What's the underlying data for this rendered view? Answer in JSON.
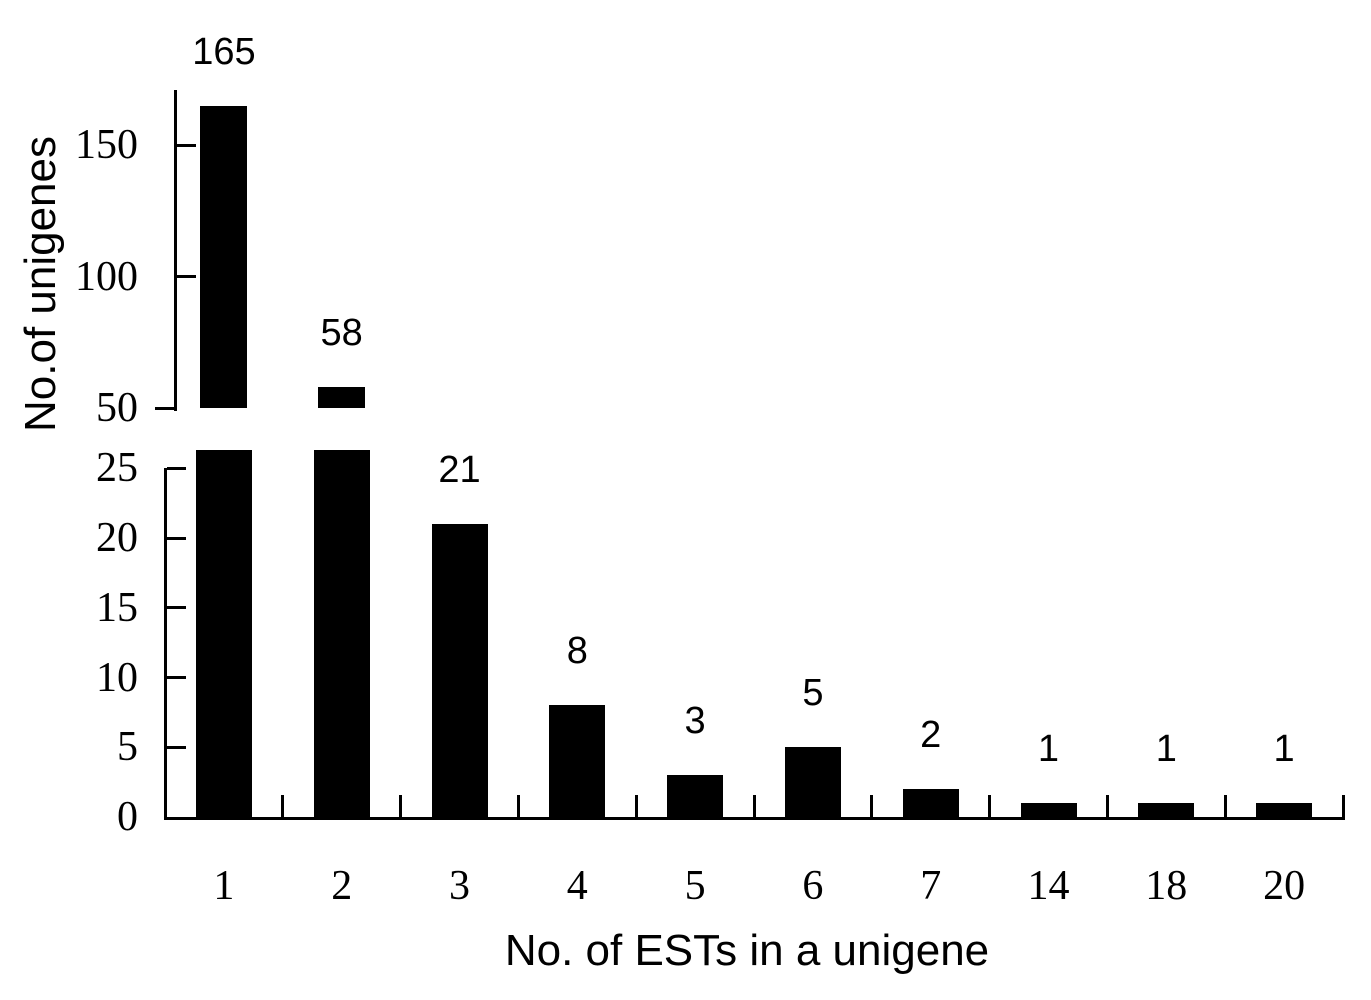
{
  "figure": {
    "background_color": "#ffffff",
    "bar_color": "#000000",
    "axis_color": "#000000",
    "text_color": "#000000"
  },
  "chart_data": {
    "type": "bar",
    "title": "",
    "xlabel": "No. of ESTs in a unigene",
    "ylabel": "No.of unigenes",
    "categories": [
      "1",
      "2",
      "3",
      "4",
      "5",
      "6",
      "7",
      "14",
      "18",
      "20"
    ],
    "values": [
      165,
      58,
      21,
      8,
      3,
      5,
      2,
      1,
      1,
      1
    ],
    "data_labels": [
      "165",
      "58",
      "21",
      "8",
      "3",
      "5",
      "2",
      "1",
      "1",
      "1"
    ],
    "grid": false,
    "legend": "none",
    "bar_color": "#000000",
    "broken_y_axis": {
      "lower_tick_values": [
        25,
        20,
        15,
        10,
        5,
        0
      ],
      "lower_tick_labels": [
        "25",
        "20",
        "15",
        "10",
        "5",
        "0"
      ],
      "lower_range": [
        0,
        26.4
      ],
      "upper_tick_values": [
        150,
        100,
        50
      ],
      "upper_tick_labels": [
        "150",
        "100",
        "50"
      ],
      "upper_range": [
        50,
        171
      ]
    }
  }
}
